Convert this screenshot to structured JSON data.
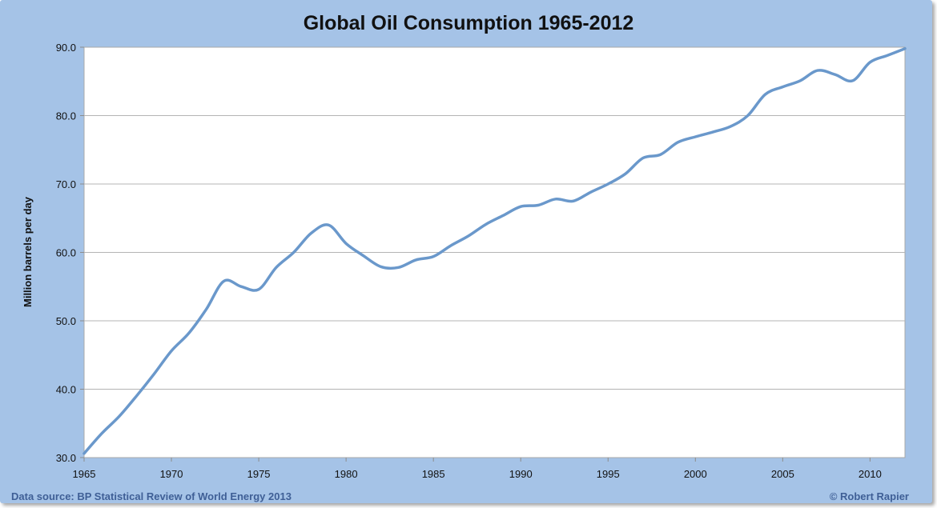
{
  "chart_data": {
    "type": "line",
    "title": "Global Oil Consumption 1965-2012",
    "xlabel": "",
    "ylabel": "Million barrels per day",
    "xlim": [
      1965,
      2012
    ],
    "ylim": [
      30,
      90
    ],
    "x_ticks": [
      "1965",
      "1970",
      "1975",
      "1980",
      "1985",
      "1990",
      "1995",
      "2000",
      "2005",
      "2010"
    ],
    "y_ticks": [
      "30.0",
      "40.0",
      "50.0",
      "60.0",
      "70.0",
      "80.0",
      "90.0"
    ],
    "grid": "horizontal",
    "series": [
      {
        "color": "#6a98cb",
        "x": [
          1965,
          1966,
          1967,
          1968,
          1969,
          1970,
          1971,
          1972,
          1973,
          1974,
          1975,
          1976,
          1977,
          1978,
          1979,
          1980,
          1981,
          1982,
          1983,
          1984,
          1985,
          1986,
          1987,
          1988,
          1989,
          1990,
          1991,
          1992,
          1993,
          1994,
          1995,
          1996,
          1997,
          1998,
          1999,
          2000,
          2001,
          2002,
          2003,
          2004,
          2005,
          2006,
          2007,
          2008,
          2009,
          2010,
          2011,
          2012
        ],
        "values": [
          30.6,
          33.5,
          36.0,
          39.0,
          42.2,
          45.6,
          48.2,
          51.7,
          55.8,
          55.0,
          54.6,
          57.8,
          60.0,
          62.8,
          64.0,
          61.3,
          59.5,
          57.9,
          57.8,
          58.9,
          59.4,
          61.0,
          62.4,
          64.1,
          65.4,
          66.7,
          66.9,
          67.8,
          67.5,
          68.8,
          70.0,
          71.5,
          73.8,
          74.3,
          76.1,
          76.9,
          77.6,
          78.4,
          80.0,
          83.1,
          84.2,
          85.1,
          86.6,
          86.0,
          85.1,
          87.8,
          88.8,
          89.8
        ]
      }
    ]
  },
  "footer": {
    "source": "Data source: BP Statistical Review of World Energy 2013",
    "credit": "© Robert Rapier"
  },
  "colors": {
    "frame_background": "#a5c3e7",
    "plot_background": "#ffffff",
    "line": "#6a98cb",
    "footer_text": "#3f5f96"
  }
}
